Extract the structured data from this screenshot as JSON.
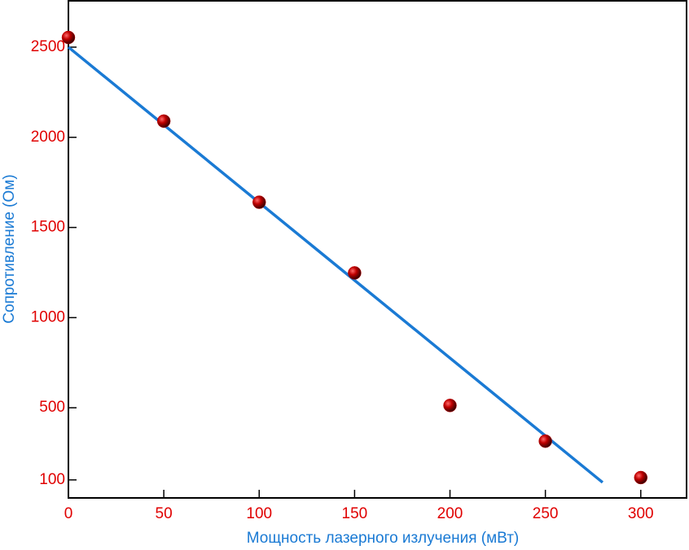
{
  "chart_data": {
    "type": "scatter",
    "xlabel": "Мощность лазерного излучения (мВт)",
    "ylabel": "Сопротивление (Ом)",
    "x": [
      0,
      50,
      100,
      150,
      200,
      250,
      300
    ],
    "values": [
      2554,
      2090,
      1640,
      1248,
      513,
      315,
      113
    ],
    "color": "#c00000",
    "fit_line": {
      "x": [
        0,
        280
      ],
      "values": [
        2500,
        86
      ],
      "color": "#1a7ad4"
    },
    "xlim": [
      0,
      324
    ],
    "ylim": [
      0,
      2757
    ],
    "xticks": [
      0,
      50,
      100,
      150,
      200,
      250,
      300
    ],
    "yticks": [
      100,
      500,
      1000,
      1500,
      2000,
      2500
    ]
  }
}
